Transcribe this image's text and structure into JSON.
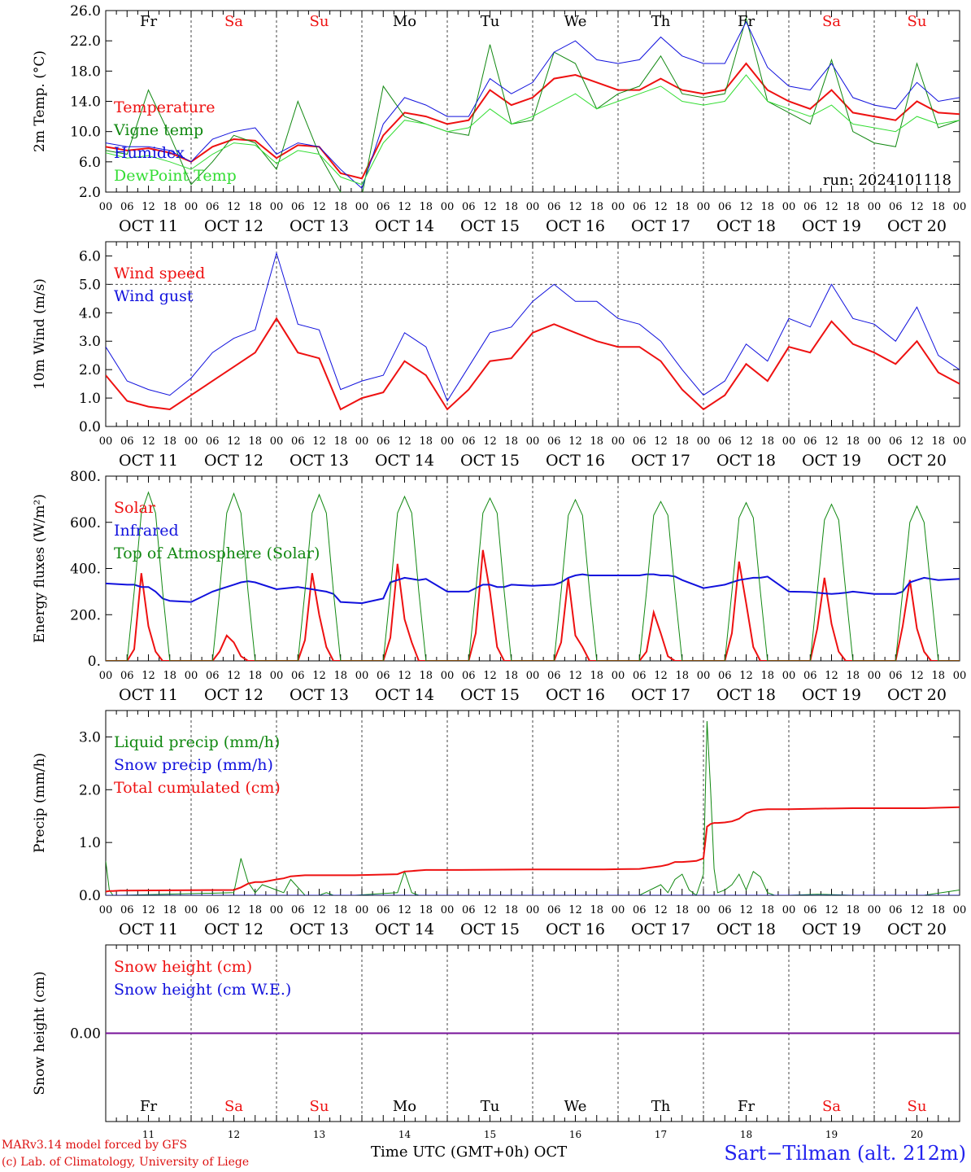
{
  "colors": {
    "red": "#ee1111",
    "green": "#118811",
    "blue": "#1111dd",
    "lime": "#33dd33",
    "purple": "#771199",
    "axis": "#000000",
    "weekend": "#ee1111"
  },
  "x_axis": {
    "hour_ticks": [
      "00",
      "06",
      "12",
      "18"
    ],
    "final_tick": "00",
    "dates": [
      "OCT 11",
      "OCT 12",
      "OCT 13",
      "OCT 14",
      "OCT 15",
      "OCT 16",
      "OCT 17",
      "OCT 18",
      "OCT 19",
      "OCT 20"
    ],
    "weekdays": [
      "Fr",
      "Sa",
      "Su",
      "Mo",
      "Tu",
      "We",
      "Th",
      "Fr",
      "Sa",
      "Su"
    ],
    "weekend_flags": [
      false,
      true,
      true,
      false,
      false,
      false,
      false,
      false,
      true,
      true
    ],
    "day_numbers": [
      "11",
      "12",
      "13",
      "14",
      "15",
      "16",
      "17",
      "18",
      "19",
      "20"
    ]
  },
  "footer": {
    "model": "MARv3.14 model forced by GFS",
    "lab": "(c) Lab. of Climatology, University of Liege",
    "axis_title": "Time UTC (GMT+0h)",
    "month": "OCT",
    "site": "Sart−Tilman (alt. 212m)"
  },
  "chart_data": [
    {
      "type": "line",
      "ylabel": "2m Temp. (°C)",
      "ylim": [
        2.0,
        26.0
      ],
      "yticks": [
        "2.0",
        "6.0",
        "10.0",
        "14.0",
        "18.0",
        "22.0",
        "26.0"
      ],
      "ytick_values": [
        2,
        6,
        10,
        14,
        18,
        22,
        26
      ],
      "run_label": "run: 2024101118",
      "show_weekdays": true,
      "x": [
        0,
        6,
        12,
        18,
        24,
        30,
        36,
        42,
        48,
        54,
        60,
        66,
        72,
        78,
        84,
        90,
        96,
        102,
        108,
        114,
        120,
        126,
        132,
        138,
        144,
        150,
        156,
        162,
        168,
        174,
        180,
        186,
        192,
        198,
        204,
        210,
        216,
        222,
        228,
        234,
        240
      ],
      "series": [
        {
          "name": "Temperature",
          "color": "#ee1111",
          "width": 2,
          "values": [
            8.0,
            7.5,
            7.8,
            7.2,
            6.0,
            8.0,
            9.0,
            8.8,
            6.5,
            8.2,
            8.0,
            4.5,
            3.8,
            9.5,
            12.5,
            12.0,
            11.0,
            11.5,
            15.5,
            13.5,
            14.5,
            17.0,
            17.5,
            16.5,
            15.5,
            15.5,
            17.0,
            15.5,
            15.0,
            15.5,
            19.0,
            15.5,
            14.0,
            13.0,
            15.5,
            12.5,
            12.0,
            11.5,
            14.0,
            12.5,
            12.3
          ]
        },
        {
          "name": "Vigne temp",
          "color": "#118811",
          "width": 1,
          "values": [
            7.5,
            7.0,
            15.5,
            9.5,
            3.0,
            6.0,
            9.5,
            8.5,
            5.0,
            14.0,
            7.0,
            2.0,
            1.5,
            16.0,
            12.0,
            11.0,
            10.0,
            9.5,
            21.5,
            11.0,
            11.5,
            20.5,
            19.0,
            13.0,
            15.0,
            16.0,
            20.0,
            15.0,
            14.5,
            15.0,
            25.0,
            14.0,
            12.5,
            11.0,
            19.5,
            10.0,
            8.5,
            8.0,
            19.0,
            10.5,
            11.5
          ]
        },
        {
          "name": "Humidex",
          "color": "#1111dd",
          "width": 1,
          "values": [
            8.5,
            8.0,
            8.0,
            7.5,
            6.0,
            9.0,
            10.0,
            10.5,
            7.0,
            8.5,
            8.0,
            5.0,
            2.5,
            11.0,
            14.5,
            13.5,
            12.0,
            12.0,
            17.0,
            15.0,
            16.5,
            20.5,
            22.0,
            19.5,
            19.0,
            19.5,
            22.5,
            20.0,
            19.0,
            19.0,
            24.5,
            18.5,
            16.0,
            15.5,
            19.0,
            14.5,
            13.5,
            13.0,
            16.5,
            14.0,
            14.5
          ]
        },
        {
          "name": "DewPoint Temp",
          "color": "#33dd33",
          "width": 1,
          "values": [
            7.2,
            6.5,
            6.8,
            6.0,
            5.0,
            7.0,
            8.5,
            8.2,
            5.8,
            7.5,
            7.0,
            4.0,
            3.0,
            8.5,
            11.5,
            11.0,
            10.0,
            10.5,
            13.0,
            11.0,
            12.0,
            13.5,
            15.0,
            13.0,
            14.0,
            15.0,
            16.0,
            14.0,
            13.5,
            14.0,
            17.5,
            14.0,
            13.0,
            12.0,
            13.5,
            11.0,
            10.5,
            10.0,
            12.0,
            11.0,
            11.5
          ]
        }
      ]
    },
    {
      "type": "line",
      "ylabel": "10m Wind (m/s)",
      "ylim": [
        0.0,
        6.5
      ],
      "yticks": [
        "0.0",
        "1.0",
        "2.0",
        "3.0",
        "4.0",
        "5.0",
        "6.0"
      ],
      "ytick_values": [
        0,
        1,
        2,
        3,
        4,
        5,
        6
      ],
      "reference_line": 5.0,
      "x": [
        0,
        6,
        12,
        18,
        24,
        30,
        36,
        42,
        48,
        54,
        60,
        66,
        72,
        78,
        84,
        90,
        96,
        102,
        108,
        114,
        120,
        126,
        132,
        138,
        144,
        150,
        156,
        162,
        168,
        174,
        180,
        186,
        192,
        198,
        204,
        210,
        216,
        222,
        228,
        234,
        240
      ],
      "series": [
        {
          "name": "Wind speed",
          "color": "#ee1111",
          "width": 2,
          "values": [
            1.8,
            0.9,
            0.7,
            0.6,
            1.1,
            1.6,
            2.1,
            2.6,
            3.8,
            2.6,
            2.4,
            0.6,
            1.0,
            1.2,
            2.3,
            1.8,
            0.6,
            1.3,
            2.3,
            2.4,
            3.3,
            3.6,
            3.3,
            3.0,
            2.8,
            2.8,
            2.3,
            1.3,
            0.6,
            1.1,
            2.2,
            1.6,
            2.8,
            2.6,
            3.7,
            2.9,
            2.6,
            2.2,
            3.0,
            1.9,
            1.5
          ]
        },
        {
          "name": "Wind gust",
          "color": "#1111dd",
          "width": 1,
          "values": [
            2.8,
            1.6,
            1.3,
            1.1,
            1.7,
            2.6,
            3.1,
            3.4,
            6.1,
            3.6,
            3.4,
            1.3,
            1.6,
            1.8,
            3.3,
            2.8,
            0.9,
            2.1,
            3.3,
            3.5,
            4.4,
            5.0,
            4.4,
            4.4,
            3.8,
            3.6,
            3.0,
            2.0,
            1.1,
            1.6,
            2.9,
            2.3,
            3.8,
            3.5,
            5.0,
            3.8,
            3.6,
            3.0,
            4.2,
            2.5,
            2.0
          ]
        }
      ]
    },
    {
      "type": "line",
      "ylabel": "Energy fluxes (W/m²)",
      "ylim": [
        0,
        800
      ],
      "yticks": [
        "0.",
        "200.",
        "400.",
        "600.",
        "800."
      ],
      "ytick_values": [
        0,
        200,
        400,
        600,
        800
      ],
      "x": [
        0,
        6,
        8,
        10,
        12,
        14,
        16,
        18,
        24,
        30,
        32,
        34,
        36,
        38,
        40,
        42,
        48,
        54,
        56,
        58,
        60,
        62,
        64,
        66,
        72,
        78,
        80,
        82,
        84,
        86,
        88,
        90,
        96,
        102,
        104,
        106,
        108,
        110,
        112,
        114,
        120,
        126,
        128,
        130,
        132,
        134,
        136,
        138,
        144,
        150,
        152,
        154,
        156,
        158,
        160,
        162,
        168,
        174,
        176,
        178,
        180,
        182,
        184,
        186,
        192,
        198,
        200,
        202,
        204,
        206,
        208,
        210,
        216,
        222,
        224,
        226,
        228,
        230,
        232,
        234,
        240
      ],
      "series": [
        {
          "name": "Solar",
          "color": "#ee1111",
          "width": 2,
          "values": [
            0,
            0,
            50,
            380,
            150,
            40,
            0,
            0,
            0,
            0,
            40,
            110,
            80,
            20,
            0,
            0,
            0,
            0,
            90,
            380,
            200,
            60,
            0,
            0,
            0,
            0,
            100,
            420,
            180,
            80,
            0,
            0,
            0,
            0,
            120,
            480,
            300,
            60,
            0,
            0,
            0,
            0,
            80,
            360,
            110,
            60,
            0,
            0,
            0,
            0,
            40,
            210,
            120,
            20,
            0,
            0,
            0,
            0,
            120,
            430,
            250,
            60,
            0,
            0,
            0,
            0,
            140,
            360,
            160,
            40,
            0,
            0,
            0,
            0,
            150,
            350,
            140,
            40,
            0,
            0,
            0
          ]
        },
        {
          "name": "Infrared",
          "color": "#1111dd",
          "width": 2,
          "values": [
            335,
            330,
            330,
            320,
            320,
            300,
            270,
            260,
            255,
            300,
            310,
            320,
            330,
            340,
            345,
            340,
            310,
            320,
            315,
            310,
            305,
            300,
            290,
            255,
            250,
            270,
            340,
            350,
            360,
            355,
            350,
            355,
            300,
            300,
            315,
            330,
            330,
            320,
            320,
            330,
            325,
            330,
            340,
            360,
            370,
            375,
            370,
            370,
            370,
            370,
            375,
            375,
            370,
            370,
            365,
            350,
            315,
            330,
            340,
            350,
            355,
            360,
            360,
            365,
            300,
            298,
            295,
            292,
            290,
            292,
            295,
            300,
            290,
            290,
            300,
            340,
            350,
            360,
            355,
            350,
            355
          ]
        },
        {
          "name": "Top of Atmosphere (Solar)",
          "color": "#118811",
          "width": 1,
          "values": [
            0,
            0,
            300,
            640,
            730,
            640,
            300,
            0,
            0,
            0,
            300,
            640,
            725,
            640,
            300,
            0,
            0,
            0,
            300,
            640,
            720,
            640,
            300,
            0,
            0,
            0,
            300,
            640,
            712,
            640,
            300,
            0,
            0,
            0,
            300,
            640,
            705,
            640,
            300,
            0,
            0,
            0,
            300,
            630,
            698,
            630,
            300,
            0,
            0,
            0,
            300,
            630,
            690,
            630,
            300,
            0,
            0,
            0,
            300,
            620,
            685,
            620,
            300,
            0,
            0,
            0,
            300,
            610,
            678,
            610,
            300,
            0,
            0,
            0,
            300,
            600,
            670,
            600,
            300,
            0,
            0
          ]
        }
      ]
    },
    {
      "type": "line",
      "ylabel": "Precip (mm/h)",
      "ylim": [
        0.0,
        3.5
      ],
      "yticks": [
        "0.0",
        "1.0",
        "2.0",
        "3.0"
      ],
      "ytick_values": [
        0,
        1,
        2,
        3
      ],
      "x": [
        0,
        1,
        2,
        4,
        36,
        38,
        40,
        42,
        44,
        48,
        50,
        52,
        56,
        60,
        62,
        64,
        70,
        82,
        84,
        86,
        88,
        90,
        100,
        120,
        140,
        150,
        156,
        158,
        160,
        162,
        164,
        166,
        168,
        169,
        170,
        171,
        172,
        174,
        176,
        178,
        180,
        182,
        184,
        186,
        188,
        190,
        192,
        200,
        210,
        230,
        240
      ],
      "series": [
        {
          "name": "Liquid precip (mm/h)",
          "color": "#118811",
          "width": 1,
          "values": [
            0.65,
            0.1,
            0,
            0,
            0.05,
            0.7,
            0.25,
            0.05,
            0.2,
            0.1,
            0.05,
            0.3,
            0,
            0,
            0.05,
            0,
            0,
            0.05,
            0.45,
            0.05,
            0,
            0,
            0,
            0,
            0,
            0,
            0.2,
            0.05,
            0.3,
            0.4,
            0.1,
            0,
            0.4,
            3.3,
            2.0,
            0.5,
            0.05,
            0.1,
            0.2,
            0.4,
            0.1,
            0.45,
            0.35,
            0.05,
            0,
            0,
            0,
            0.02,
            0,
            0,
            0.1
          ]
        },
        {
          "name": "Snow precip (mm/h)",
          "color": "#1111dd",
          "width": 1,
          "values": [
            0,
            0,
            0,
            0,
            0,
            0,
            0,
            0,
            0,
            0,
            0,
            0,
            0,
            0,
            0,
            0,
            0,
            0,
            0,
            0,
            0,
            0,
            0,
            0,
            0,
            0,
            0,
            0,
            0,
            0,
            0,
            0,
            0,
            0,
            0,
            0,
            0,
            0,
            0,
            0,
            0,
            0,
            0,
            0,
            0,
            0,
            0,
            0,
            0,
            0,
            0
          ]
        },
        {
          "name": "Total cumulated (cm)",
          "color": "#ee1111",
          "width": 2,
          "values": [
            0.07,
            0.08,
            0.08,
            0.09,
            0.1,
            0.15,
            0.22,
            0.25,
            0.25,
            0.3,
            0.32,
            0.36,
            0.38,
            0.38,
            0.38,
            0.38,
            0.38,
            0.4,
            0.45,
            0.46,
            0.47,
            0.48,
            0.48,
            0.49,
            0.49,
            0.5,
            0.55,
            0.58,
            0.63,
            0.63,
            0.64,
            0.65,
            0.7,
            1.3,
            1.35,
            1.37,
            1.37,
            1.38,
            1.4,
            1.45,
            1.55,
            1.6,
            1.62,
            1.63,
            1.63,
            1.63,
            1.63,
            1.64,
            1.65,
            1.65,
            1.67
          ]
        }
      ]
    },
    {
      "type": "line",
      "ylabel": "Snow height (cm)",
      "ylim": [
        -1.0,
        1.0
      ],
      "yticks": [
        "0.00"
      ],
      "ytick_values": [
        0
      ],
      "show_bottom_weekdays": true,
      "x": [
        0,
        240
      ],
      "series": [
        {
          "name": "Snow height (cm)",
          "color": "#ee1111",
          "width": 1,
          "values": [
            0,
            0
          ]
        },
        {
          "name": "Snow height (cm W.E.)",
          "color": "#1111dd",
          "width": 1,
          "values": [
            0,
            0
          ]
        }
      ]
    }
  ]
}
